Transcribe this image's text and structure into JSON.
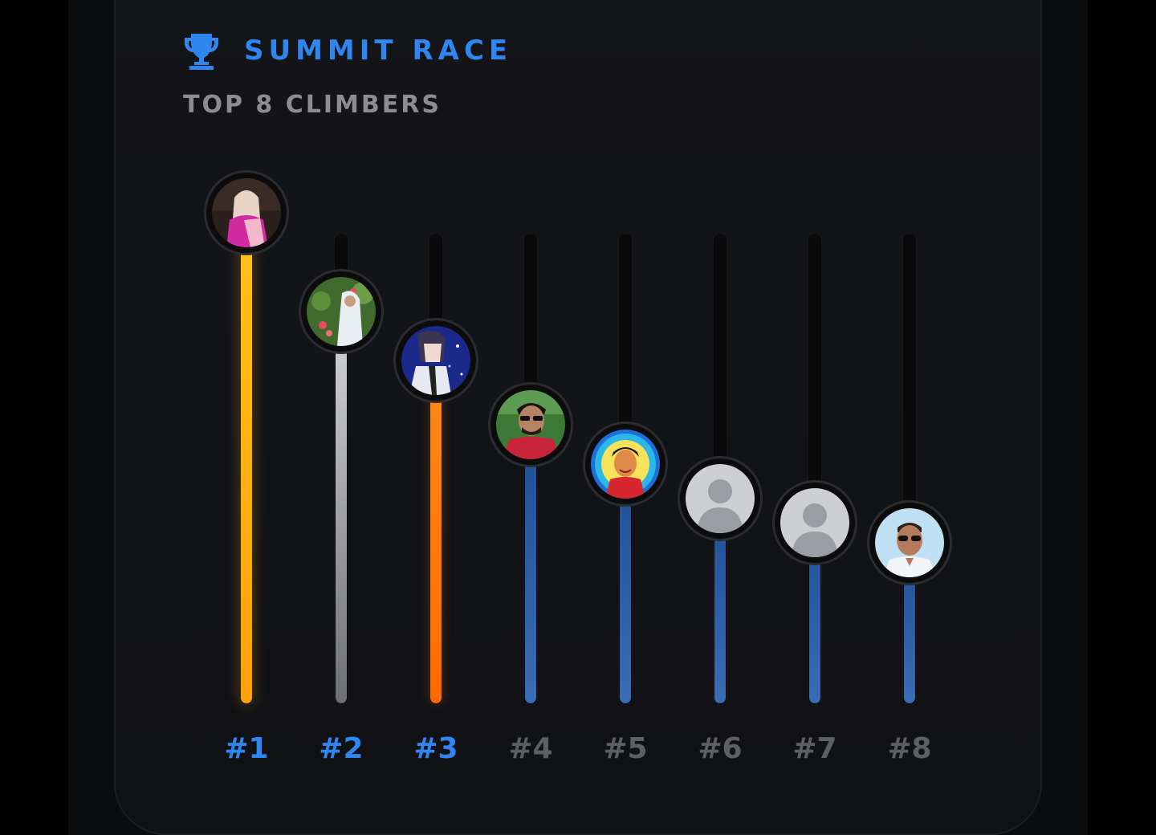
{
  "header": {
    "title": "SUMMIT RACE",
    "subtitle": "TOP 8 CLIMBERS",
    "icon": "trophy-icon",
    "accent_color": "#2f86f0"
  },
  "climbers": [
    {
      "rank": "#1",
      "level": 1.0,
      "tier": "gold",
      "avatar": "photo-woman-pink-shawl"
    },
    {
      "rank": "#2",
      "level": 0.8,
      "tier": "silver",
      "avatar": "photo-woman-flowers"
    },
    {
      "rank": "#3",
      "level": 0.7,
      "tier": "bronze",
      "avatar": "anime-character"
    },
    {
      "rank": "#4",
      "level": 0.57,
      "tier": "blue",
      "avatar": "photo-man-sunglasses"
    },
    {
      "rank": "#5",
      "level": 0.49,
      "tier": "blue",
      "avatar": "cartoon-portrait"
    },
    {
      "rank": "#6",
      "level": 0.42,
      "tier": "blue",
      "avatar": "default-user-icon"
    },
    {
      "rank": "#7",
      "level": 0.37,
      "tier": "blue",
      "avatar": "default-user-icon"
    },
    {
      "rank": "#8",
      "level": 0.33,
      "tier": "blue",
      "avatar": "photo-man-glasses"
    }
  ],
  "rank_colors": {
    "highlight": "#2f86f0",
    "default": "#5d5f64"
  }
}
